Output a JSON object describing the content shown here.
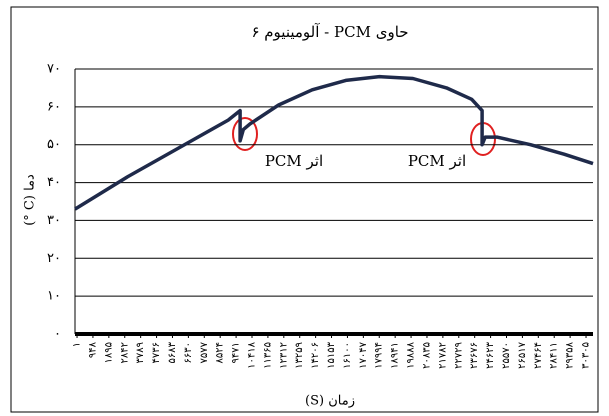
{
  "chart_data": {
    "type": "line",
    "title": "حاوی PCM - آلومینیوم ۶",
    "x_label": "زمان (S)",
    "y_label": "دما (C °)",
    "annotations": [
      "اثر PCM",
      "اثر PCM"
    ],
    "xlim": [
      -120,
      30720
    ],
    "xticks": [
      {
        "value": 1,
        "label": "۱"
      },
      {
        "value": 948,
        "label": "۹۴۸"
      },
      {
        "value": 1895,
        "label": "۱۸۹۵"
      },
      {
        "value": 2842,
        "label": "۲۸۴۲"
      },
      {
        "value": 3789,
        "label": "۳۷۸۹"
      },
      {
        "value": 4736,
        "label": "۴۷۳۶"
      },
      {
        "value": 5683,
        "label": "۵۶۸۳"
      },
      {
        "value": 6630,
        "label": "۶۶۳۰"
      },
      {
        "value": 7577,
        "label": "۷۵۷۷"
      },
      {
        "value": 8524,
        "label": "۸۵۲۴"
      },
      {
        "value": 9471,
        "label": "۹۴۷۱"
      },
      {
        "value": 10418,
        "label": "۱۰۴۱۸"
      },
      {
        "value": 11365,
        "label": "۱۱۳۶۵"
      },
      {
        "value": 12312,
        "label": "۱۲۳۱۲"
      },
      {
        "value": 13259,
        "label": "۱۳۲۵۹"
      },
      {
        "value": 14206,
        "label": "۱۴۲۰۶"
      },
      {
        "value": 15153,
        "label": "۱۵۱۵۳"
      },
      {
        "value": 16100,
        "label": "۱۶۱۰۰"
      },
      {
        "value": 17047,
        "label": "۱۷۰۴۷"
      },
      {
        "value": 17994,
        "label": "۱۷۹۹۴"
      },
      {
        "value": 18941,
        "label": "۱۸۹۴۱"
      },
      {
        "value": 19888,
        "label": "۱۹۸۸۸"
      },
      {
        "value": 20835,
        "label": "۲۰۸۳۵"
      },
      {
        "value": 21782,
        "label": "۲۱۷۸۲"
      },
      {
        "value": 22729,
        "label": "۲۲۷۲۹"
      },
      {
        "value": 23676,
        "label": "۲۳۶۷۶"
      },
      {
        "value": 24623,
        "label": "۲۴۶۲۳"
      },
      {
        "value": 25570,
        "label": "۲۵۵۷۰"
      },
      {
        "value": 26517,
        "label": "۲۶۵۱۷"
      },
      {
        "value": 27464,
        "label": "۲۷۴۶۴"
      },
      {
        "value": 28411,
        "label": "۲۸۴۱۱"
      },
      {
        "value": 29358,
        "label": "۲۹۳۵۸"
      },
      {
        "value": 30305,
        "label": "۳۰۳۰۵"
      }
    ],
    "ylim": [
      0,
      70
    ],
    "yticks": [
      {
        "value": 0,
        "label": "۰"
      },
      {
        "value": 10,
        "label": "۱۰"
      },
      {
        "value": 20,
        "label": "۲۰"
      },
      {
        "value": 30,
        "label": "۳۰"
      },
      {
        "value": 40,
        "label": "۴۰"
      },
      {
        "value": 50,
        "label": "۵۰"
      },
      {
        "value": 60,
        "label": "۶۰"
      },
      {
        "value": 70,
        "label": "۷۰"
      }
    ],
    "grid": true,
    "color": "#1f2a4a",
    "x": [
      -120,
      3000,
      6000,
      9000,
      9710,
      9710,
      9900,
      10300,
      12000,
      14000,
      16000,
      18000,
      20000,
      22000,
      23500,
      24120,
      24120,
      24300,
      25000,
      27000,
      29000,
      30720
    ],
    "values": [
      33,
      41.5,
      49,
      56.5,
      59,
      51,
      54,
      55.5,
      60.5,
      64.5,
      67,
      68,
      67.5,
      65,
      62,
      59,
      50,
      52,
      52,
      50,
      47.5,
      45
    ]
  }
}
